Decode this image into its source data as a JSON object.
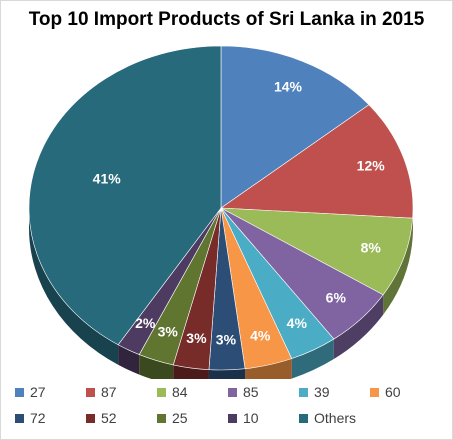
{
  "chart_data": {
    "type": "pie",
    "title": "Top 10 Import Products of Sri Lanka in 2015",
    "three_d": true,
    "legend_position": "bottom",
    "slices": [
      {
        "label": "27",
        "value": 14,
        "value_label": "14%",
        "color": "#4f81bd"
      },
      {
        "label": "87",
        "value": 12,
        "value_label": "12%",
        "color": "#c0504d"
      },
      {
        "label": "84",
        "value": 8,
        "value_label": "8%",
        "color": "#9bbb59"
      },
      {
        "label": "85",
        "value": 6,
        "value_label": "6%",
        "color": "#8064a2"
      },
      {
        "label": "39",
        "value": 4,
        "value_label": "4%",
        "color": "#4bacc6"
      },
      {
        "label": "60",
        "value": 4,
        "value_label": "4%",
        "color": "#f79646"
      },
      {
        "label": "72",
        "value": 3,
        "value_label": "3%",
        "color": "#2c4d75"
      },
      {
        "label": "52",
        "value": 3,
        "value_label": "3%",
        "color": "#772c2a"
      },
      {
        "label": "25",
        "value": 3,
        "value_label": "3%",
        "color": "#5f7530"
      },
      {
        "label": "10",
        "value": 2,
        "value_label": "2%",
        "color": "#4d3b62"
      },
      {
        "label": "Others",
        "value": 41,
        "value_label": "41%",
        "color": "#276a7c"
      }
    ]
  }
}
